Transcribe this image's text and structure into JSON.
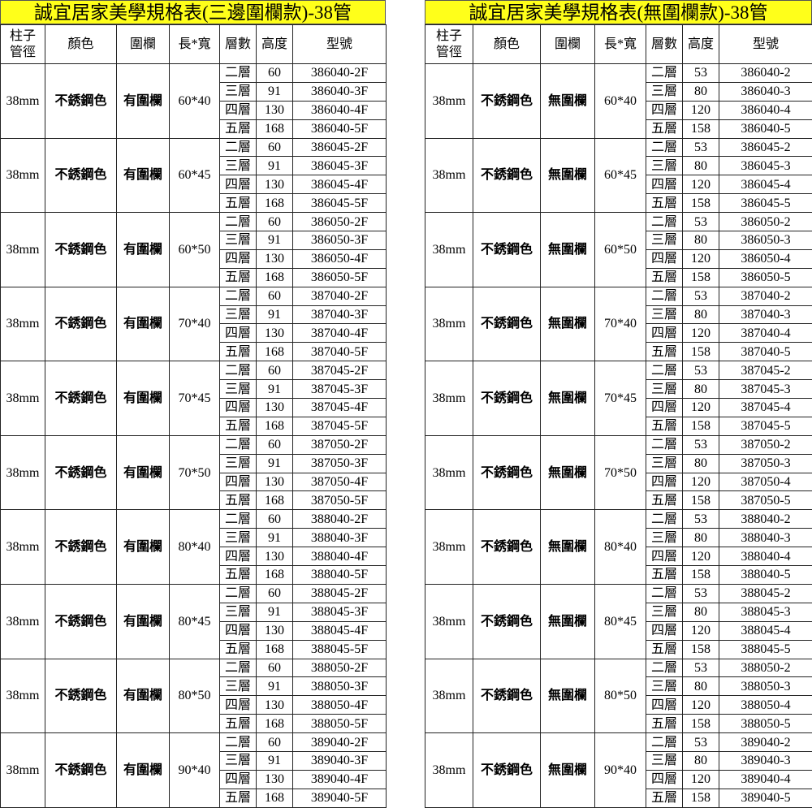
{
  "tables": [
    {
      "id": "L",
      "title": "誠宜居家美學規格表(三邊圍欄款)-38管",
      "headers": [
        "柱子\n管徑",
        "顏色",
        "圍欄",
        "長*寬",
        "層數",
        "高度",
        "型號"
      ],
      "pipe": "38mm",
      "color": "不銹鋼色",
      "rail": "有圍欄",
      "layers": [
        "二層",
        "三層",
        "四層",
        "五層"
      ],
      "heights": [
        "60",
        "91",
        "130",
        "168"
      ],
      "groups": [
        {
          "size": "60*40",
          "models": [
            "386040-2F",
            "386040-3F",
            "386040-4F",
            "386040-5F"
          ]
        },
        {
          "size": "60*45",
          "models": [
            "386045-2F",
            "386045-3F",
            "386045-4F",
            "386045-5F"
          ]
        },
        {
          "size": "60*50",
          "models": [
            "386050-2F",
            "386050-3F",
            "386050-4F",
            "386050-5F"
          ]
        },
        {
          "size": "70*40",
          "models": [
            "387040-2F",
            "387040-3F",
            "387040-4F",
            "387040-5F"
          ]
        },
        {
          "size": "70*45",
          "models": [
            "387045-2F",
            "387045-3F",
            "387045-4F",
            "387045-5F"
          ]
        },
        {
          "size": "70*50",
          "models": [
            "387050-2F",
            "387050-3F",
            "387050-4F",
            "387050-5F"
          ]
        },
        {
          "size": "80*40",
          "models": [
            "388040-2F",
            "388040-3F",
            "388040-4F",
            "388040-5F"
          ]
        },
        {
          "size": "80*45",
          "models": [
            "388045-2F",
            "388045-3F",
            "388045-4F",
            "388045-5F"
          ]
        },
        {
          "size": "80*50",
          "models": [
            "388050-2F",
            "388050-3F",
            "388050-4F",
            "388050-5F"
          ]
        },
        {
          "size": "90*40",
          "models": [
            "389040-2F",
            "389040-3F",
            "389040-4F",
            "389040-5F"
          ]
        }
      ]
    },
    {
      "id": "R",
      "title": "誠宜居家美學規格表(無圍欄款)-38管",
      "headers": [
        "柱子\n管徑",
        "顏色",
        "圍欄",
        "長*寬",
        "層數",
        "高度",
        "型號"
      ],
      "pipe": "38mm",
      "color": "不銹鋼色",
      "rail": "無圍欄",
      "layers": [
        "二層",
        "三層",
        "四層",
        "五層"
      ],
      "heights": [
        "53",
        "80",
        "120",
        "158"
      ],
      "groups": [
        {
          "size": "60*40",
          "models": [
            "386040-2",
            "386040-3",
            "386040-4",
            "386040-5"
          ]
        },
        {
          "size": "60*45",
          "models": [
            "386045-2",
            "386045-3",
            "386045-4",
            "386045-5"
          ]
        },
        {
          "size": "60*50",
          "models": [
            "386050-2",
            "386050-3",
            "386050-4",
            "386050-5"
          ]
        },
        {
          "size": "70*40",
          "models": [
            "387040-2",
            "387040-3",
            "387040-4",
            "387040-5"
          ]
        },
        {
          "size": "70*45",
          "models": [
            "387045-2",
            "387045-3",
            "387045-4",
            "387045-5"
          ]
        },
        {
          "size": "70*50",
          "models": [
            "387050-2",
            "387050-3",
            "387050-4",
            "387050-5"
          ]
        },
        {
          "size": "80*40",
          "models": [
            "388040-2",
            "388040-3",
            "388040-4",
            "388040-5"
          ]
        },
        {
          "size": "80*45",
          "models": [
            "388045-2",
            "388045-3",
            "388045-4",
            "388045-5"
          ]
        },
        {
          "size": "80*50",
          "models": [
            "388050-2",
            "388050-3",
            "388050-4",
            "388050-5"
          ]
        },
        {
          "size": "90*40",
          "models": [
            "389040-2",
            "389040-3",
            "389040-4",
            "389040-5"
          ]
        }
      ]
    }
  ],
  "colors": {
    "title_bg": "#ffff1a",
    "border": "#222222"
  }
}
